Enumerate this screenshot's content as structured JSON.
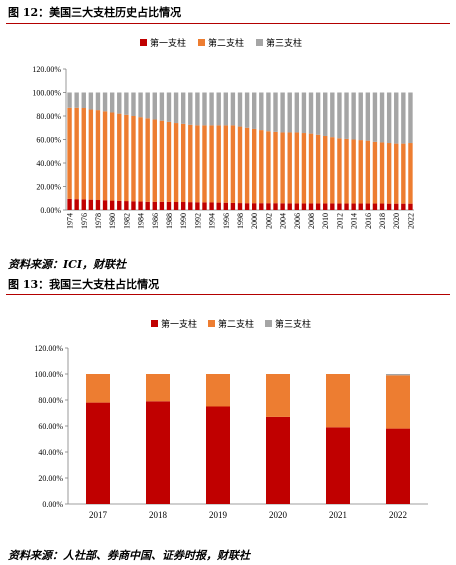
{
  "colors": {
    "first": "#c00000",
    "second": "#ed7d31",
    "third": "#a5a5a5",
    "rule": "#b30000"
  },
  "figures": [
    {
      "title": "图 12：美国三大支柱历史占比情况",
      "source": "资料来源：ICI，财联社"
    },
    {
      "title": "图 13：我国三大支柱占比情况",
      "source": "资料来源：人社部、券商中国、证券时报，财联社"
    }
  ],
  "chart_data": [
    {
      "type": "bar",
      "stacked": true,
      "title": "",
      "xlabel": "",
      "ylabel": "",
      "ylim": [
        0,
        120
      ],
      "yticks": [
        "0.00%",
        "20.00%",
        "40.00%",
        "60.00%",
        "80.00%",
        "100.00%",
        "120.00%"
      ],
      "legend_position": "top",
      "categories": [
        "1974",
        "1975",
        "1976",
        "1977",
        "1978",
        "1979",
        "1980",
        "1981",
        "1982",
        "1983",
        "1984",
        "1985",
        "1986",
        "1987",
        "1988",
        "1989",
        "1990",
        "1991",
        "1992",
        "1993",
        "1994",
        "1995",
        "1996",
        "1997",
        "1998",
        "1999",
        "2000",
        "2001",
        "2002",
        "2003",
        "2004",
        "2005",
        "2006",
        "2007",
        "2008",
        "2009",
        "2010",
        "2011",
        "2012",
        "2013",
        "2014",
        "2015",
        "2016",
        "2017",
        "2018",
        "2019",
        "2020",
        "2021",
        "2022"
      ],
      "tick_labels": [
        "1974",
        "1976",
        "1978",
        "1980",
        "1982",
        "1984",
        "1986",
        "1988",
        "1990",
        "1992",
        "1994",
        "1996",
        "1998",
        "2000",
        "2002",
        "2004",
        "2006",
        "2008",
        "2010",
        "2012",
        "2014",
        "2016",
        "2018",
        "2020",
        "2022"
      ],
      "series": [
        {
          "name": "第一支柱",
          "values": [
            9.5,
            9.2,
            9.0,
            8.8,
            8.5,
            8.3,
            8.0,
            7.8,
            7.6,
            7.4,
            7.2,
            7.0,
            7.0,
            7.0,
            6.9,
            6.8,
            6.8,
            6.7,
            6.6,
            6.5,
            6.4,
            6.3,
            6.2,
            6.0,
            5.9,
            5.8,
            5.8,
            5.8,
            5.8,
            5.8,
            5.7,
            5.7,
            5.6,
            5.6,
            5.6,
            5.6,
            5.6,
            5.6,
            5.5,
            5.5,
            5.5,
            5.5,
            5.5,
            5.5,
            5.5,
            5.4,
            5.4,
            5.4,
            5.4
          ]
        },
        {
          "name": "第二支柱",
          "values": [
            77.5,
            77.8,
            77.8,
            76.7,
            76.5,
            75.7,
            75.0,
            74.2,
            73.4,
            72.6,
            71.8,
            71.0,
            70.0,
            69.0,
            68.1,
            67.2,
            66.5,
            65.8,
            65.4,
            65.5,
            65.6,
            65.7,
            65.8,
            66.0,
            65.1,
            64.2,
            63.2,
            62.2,
            61.2,
            60.7,
            60.3,
            60.3,
            60.4,
            59.9,
            59.4,
            58.4,
            57.4,
            56.4,
            55.5,
            55.0,
            54.5,
            54.0,
            53.5,
            52.5,
            52.0,
            51.6,
            51.1,
            51.1,
            51.6
          ]
        },
        {
          "name": "第三支柱",
          "values": [
            13.0,
            13.0,
            13.2,
            14.5,
            15.0,
            16.0,
            17.0,
            18.0,
            19.0,
            20.0,
            21.0,
            22.0,
            23.0,
            24.0,
            25.0,
            26.0,
            26.7,
            27.5,
            28.0,
            28.0,
            28.0,
            28.0,
            28.0,
            28.0,
            29.0,
            30.0,
            31.0,
            32.0,
            33.0,
            33.5,
            34.0,
            34.0,
            34.0,
            34.5,
            35.0,
            36.0,
            37.0,
            38.0,
            39.0,
            39.5,
            40.0,
            40.5,
            41.0,
            42.0,
            42.5,
            43.0,
            43.5,
            43.5,
            43.0
          ]
        }
      ]
    },
    {
      "type": "bar",
      "stacked": true,
      "title": "",
      "xlabel": "",
      "ylabel": "",
      "ylim": [
        0,
        120
      ],
      "yticks": [
        "0.00%",
        "20.00%",
        "40.00%",
        "60.00%",
        "80.00%",
        "100.00%",
        "120.00%"
      ],
      "legend_position": "top",
      "categories": [
        "2017",
        "2018",
        "2019",
        "2020",
        "2021",
        "2022"
      ],
      "series": [
        {
          "name": "第一支柱",
          "values": [
            78,
            79,
            75,
            67,
            59,
            58
          ]
        },
        {
          "name": "第二支柱",
          "values": [
            22,
            21,
            25,
            33,
            41,
            41
          ]
        },
        {
          "name": "第三支柱",
          "values": [
            0,
            0,
            0,
            0,
            0,
            1
          ]
        }
      ]
    }
  ]
}
